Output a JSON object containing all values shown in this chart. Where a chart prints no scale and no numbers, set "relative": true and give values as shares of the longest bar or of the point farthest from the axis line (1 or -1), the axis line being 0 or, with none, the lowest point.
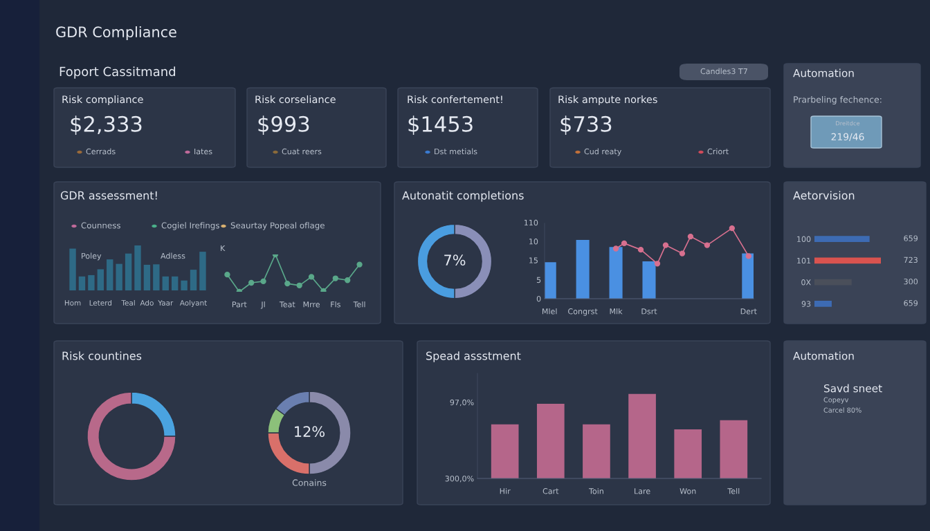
{
  "chart_data": [
    {
      "type": "other",
      "annotations": [
        "GDR Compliance",
        "Foport Cassitmand",
        "Candles3 T7",
        "Risk compliance",
        "$2,333",
        "Cerrads",
        "Iates",
        "Risk corseliance",
        "$993",
        "Cuat reers",
        "Risk confertement!",
        "$1453",
        "Dst metials",
        "Risk ampute norkes",
        "$733",
        "Cud reaty",
        "Criort",
        "Automation",
        "Prarbeling fechence:",
        "Dreitdce",
        "219/46",
        "Automation",
        "Savd sneet",
        "Copeyv",
        "Carcel 80%"
      ]
    },
    {
      "type": "bar",
      "title": "GDR assessment!",
      "relative": true,
      "color": "#2e6a86",
      "categories": [
        "Hom",
        null,
        null,
        "Leterd",
        null,
        null,
        "Teal",
        null,
        "Ado",
        null,
        "Yaar",
        null,
        null,
        "Aolyant",
        null
      ],
      "values": [
        0.93,
        0.31,
        0.34,
        0.47,
        0.69,
        0.59,
        0.82,
        1,
        0.57,
        0.58,
        0.31,
        0.31,
        0.22,
        0.46,
        0.86
      ],
      "annotations": [
        "Counness",
        "Cogiel Irefings",
        "Seaurtay Popeal oflage",
        "Poley",
        "Adless"
      ]
    },
    {
      "type": "line",
      "relative": true,
      "color": "#5aa88a",
      "marker": "circle",
      "categories": [
        null,
        "Part",
        null,
        "Jl",
        null,
        "Teat",
        null,
        "Mrre",
        null,
        "Fls",
        null,
        "Tell"
      ],
      "values": [
        0.46,
        0,
        0.24,
        0.28,
        1,
        0.22,
        0.17,
        0.4,
        0.02,
        0.36,
        0.31,
        0.73
      ],
      "annotations": [
        "K"
      ]
    },
    {
      "type": "donut",
      "title": "Autonatit completions",
      "categories": [
        null,
        null
      ],
      "values": [
        50,
        50
      ],
      "colors": [
        "#8a8fb8",
        "#4a9de0"
      ],
      "annotations": [
        "7%"
      ]
    },
    {
      "type": "bar",
      "categories": [
        "Mlel",
        null,
        null,
        null,
        "Congrst",
        null,
        null,
        null,
        "Mlk",
        null,
        null,
        null,
        "Dsrt",
        null,
        null,
        null,
        null,
        null,
        null,
        null,
        null,
        null,
        null,
        null,
        "Dert"
      ],
      "ylim": [
        0,
        20
      ],
      "yticks": [
        0,
        5
      ],
      "annotations": [
        "15",
        "10",
        "110"
      ],
      "series": [
        {
          "type": "bar",
          "color": "#4a90e2",
          "values": [
            9.7,
            null,
            null,
            null,
            15.6,
            null,
            null,
            null,
            13.7,
            null,
            null,
            null,
            9.9,
            null,
            null,
            null,
            null,
            null,
            null,
            null,
            null,
            null,
            null,
            null,
            12.0
          ]
        },
        {
          "type": "line",
          "color": "#d8708f",
          "marker": "circle",
          "values": [
            null,
            null,
            null,
            null,
            null,
            null,
            null,
            null,
            13.3,
            14.7,
            null,
            13.0,
            null,
            9.3,
            14.2,
            null,
            12.0,
            16.5,
            null,
            14.2,
            null,
            null,
            18.7,
            null,
            11.3
          ]
        }
      ]
    },
    {
      "type": "bar",
      "title": "Aetorvision",
      "orientation": "horizontal",
      "relative": true,
      "categories": [
        "100",
        "101",
        "0X",
        "93"
      ],
      "values": [
        0.83,
        1,
        0.56,
        0.26
      ],
      "colors": [
        "#3d6bb3",
        "#d9534f",
        "#4a4f5a",
        "#3d6bb3"
      ],
      "annotations": [
        "659",
        "723",
        "300",
        "659"
      ]
    },
    {
      "type": "donut",
      "title": "Risk countines",
      "categories": [
        null,
        null
      ],
      "values": [
        25,
        75
      ],
      "colors": [
        "#4aa3e0",
        "#b8698a"
      ]
    },
    {
      "type": "donut",
      "categories": [
        null,
        null,
        null,
        null
      ],
      "values": [
        50,
        25,
        10,
        15
      ],
      "colors": [
        "#8a8aaa",
        "#d9706a",
        "#8cc07a",
        "#6a7fb0"
      ],
      "annotations": [
        "12%",
        "Conains"
      ]
    },
    {
      "type": "bar",
      "title": "Spead assstment",
      "color": "#b5668a",
      "categories": [
        "Hir",
        "Cart",
        "Toin",
        "Lare",
        "Won",
        "Tell"
      ],
      "base": [
        300,
        300,
        300,
        300,
        300,
        300
      ],
      "values": [
        -144,
        -199,
        -144,
        -225,
        -131,
        -155
      ],
      "ylim": [
        300,
        20
      ],
      "yticks": [
        {
          "value": 300,
          "label": "300,0%"
        },
        {
          "value": 97,
          "label": "97,0%"
        }
      ]
    }
  ]
}
